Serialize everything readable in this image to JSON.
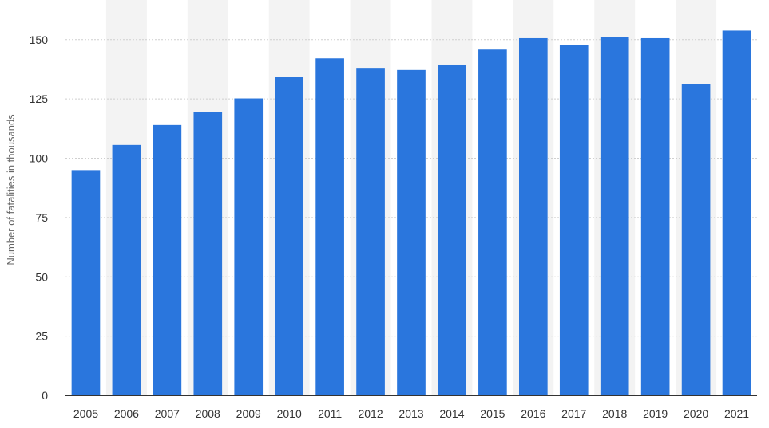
{
  "chart_data": {
    "type": "bar",
    "title": "",
    "xlabel": "",
    "ylabel": "Number of fatalities in thousands",
    "ylim": [
      0,
      160
    ],
    "yticks": [
      0,
      25,
      50,
      75,
      100,
      125,
      150
    ],
    "grid": true,
    "legend": "none",
    "categories": [
      "2005",
      "2006",
      "2007",
      "2008",
      "2009",
      "2010",
      "2011",
      "2012",
      "2013",
      "2014",
      "2015",
      "2016",
      "2017",
      "2018",
      "2019",
      "2020",
      "2021"
    ],
    "values": [
      95,
      105.6,
      114,
      119.5,
      125.2,
      134.2,
      142.1,
      138.1,
      137.2,
      139.5,
      145.8,
      150.6,
      147.6,
      151,
      150.6,
      131.3,
      153.8
    ]
  },
  "colors": {
    "bar": "#2a76dd",
    "band": "#f3f3f3",
    "grid": "#cfcfcf",
    "axis": "#333333"
  }
}
